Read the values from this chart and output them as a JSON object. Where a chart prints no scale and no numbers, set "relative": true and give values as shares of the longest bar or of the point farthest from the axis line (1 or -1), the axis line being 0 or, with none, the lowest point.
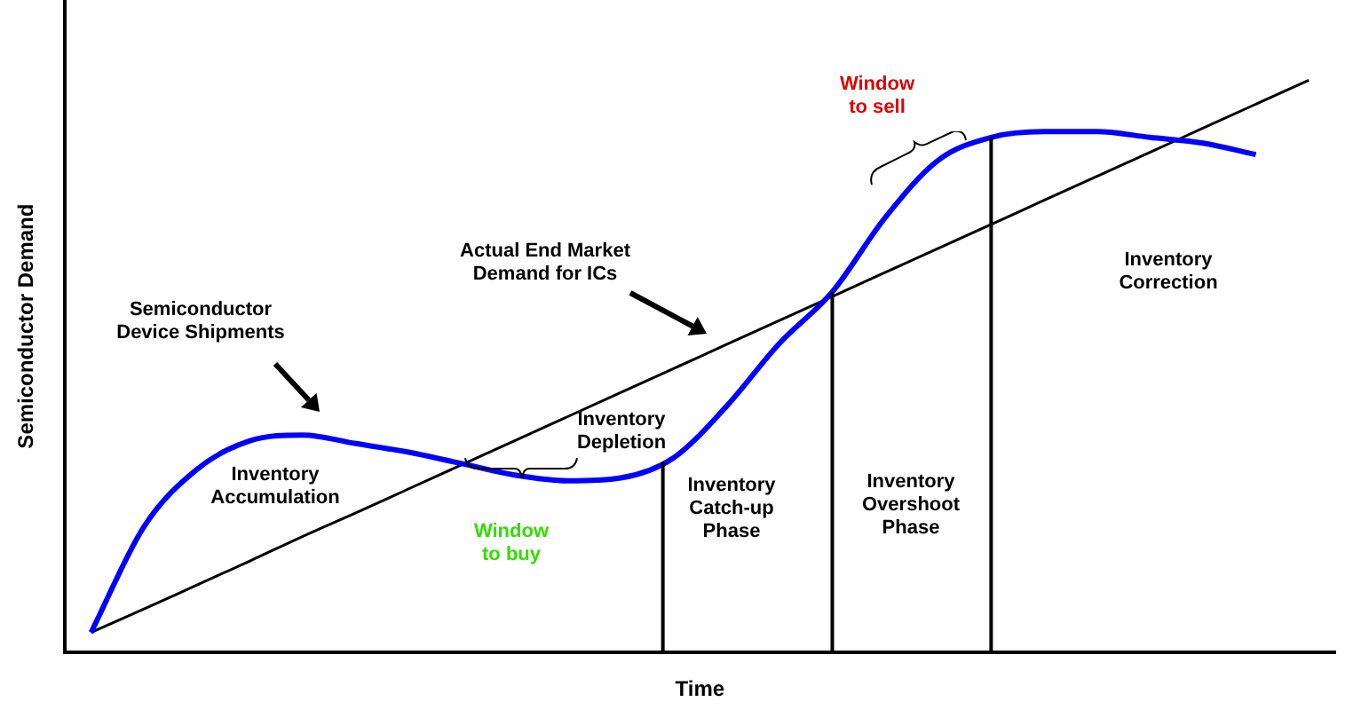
{
  "chart_data": {
    "type": "line",
    "relative": true,
    "xlabel": "Time",
    "ylabel": "Semiconductor Demand",
    "categories": [
      null,
      null,
      null,
      null,
      null,
      null,
      null,
      null,
      null,
      null,
      null,
      null,
      null,
      null,
      null,
      null,
      null,
      null,
      null,
      null,
      null,
      null,
      null,
      null
    ],
    "series": [
      {
        "color": "#0000ff",
        "values": [
          0.035,
          0.22,
          0.32,
          0.37,
          0.38,
          0.365,
          0.35,
          0.33,
          0.31,
          0.3,
          0.305,
          0.34,
          0.43,
          0.54,
          0.63,
          0.76,
          0.86,
          0.9,
          0.91,
          0.91,
          0.9,
          0.89,
          0.87,
          null
        ]
      },
      {
        "color": "#000000",
        "values": [
          0.035,
          0.076,
          0.118,
          0.16,
          0.203,
          0.244,
          0.286,
          0.328,
          0.37,
          0.412,
          0.454,
          0.496,
          0.538,
          0.58,
          0.622,
          0.664,
          0.706,
          0.748,
          0.79,
          0.832,
          0.874,
          0.916,
          0.958,
          1.0
        ]
      }
    ],
    "annotations": [
      "Semiconductor Device Shipments",
      "Actual End Market Demand for ICs",
      "Inventory Accumulation",
      "Window to buy",
      "Inventory Depletion",
      "Inventory Catch-up Phase",
      "Inventory Overshoot Phase",
      "Window to sell",
      "Inventory Correction"
    ]
  }
}
